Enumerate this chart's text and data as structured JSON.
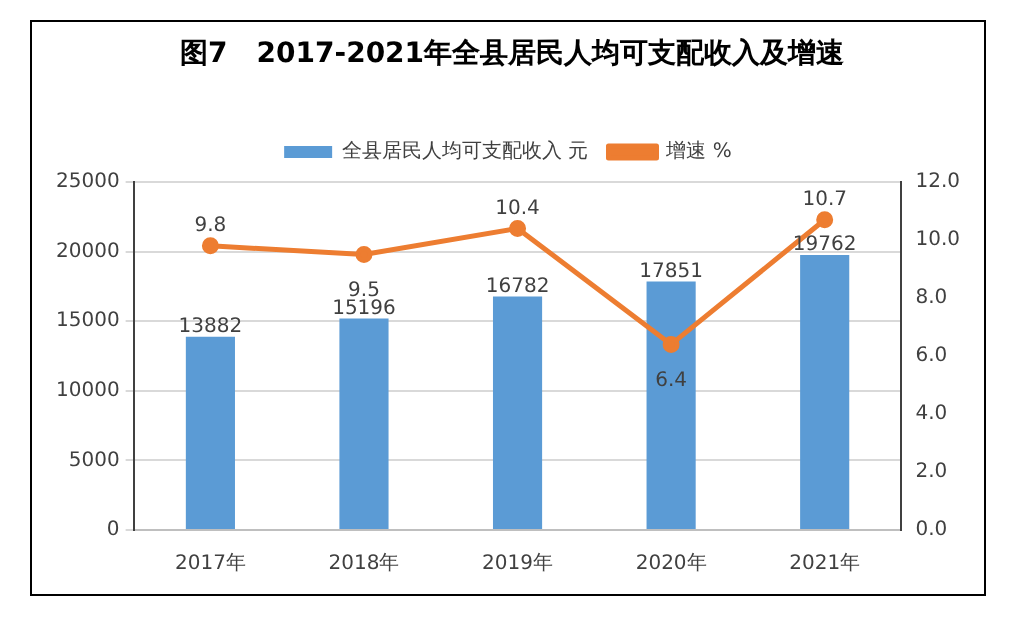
{
  "chart_data": {
    "type": "bar",
    "title": "图7   2017-2021年全县居民人均可支配收入及增速",
    "categories": [
      "2017年",
      "2018年",
      "2019年",
      "2020年",
      "2021年"
    ],
    "series": [
      {
        "name": "全县居民人均可支配收入 元",
        "color": "#5b9bd5",
        "values": [
          13882,
          15196,
          16782,
          17851,
          19762
        ]
      },
      {
        "name": "增速 %",
        "type": "line",
        "axis": "y2",
        "color": "#ed7d31",
        "values": [
          9.8,
          9.5,
          10.4,
          6.4,
          10.7
        ]
      }
    ],
    "ylim": [
      0,
      25000
    ],
    "yticks": [
      0,
      5000,
      10000,
      15000,
      20000,
      25000
    ],
    "y2lim": [
      0,
      12
    ],
    "y2ticks": [
      {
        "value": 0,
        "label": "0.0"
      },
      {
        "value": 2,
        "label": "2.0"
      },
      {
        "value": 4,
        "label": "4.0"
      },
      {
        "value": 6,
        "label": "6.0"
      },
      {
        "value": 8,
        "label": "8.0"
      },
      {
        "value": 10,
        "label": "10.0"
      },
      {
        "value": 12,
        "label": "12.0"
      }
    ],
    "grid": "y",
    "legend": "top",
    "marker": "circle",
    "data_labels": true
  }
}
